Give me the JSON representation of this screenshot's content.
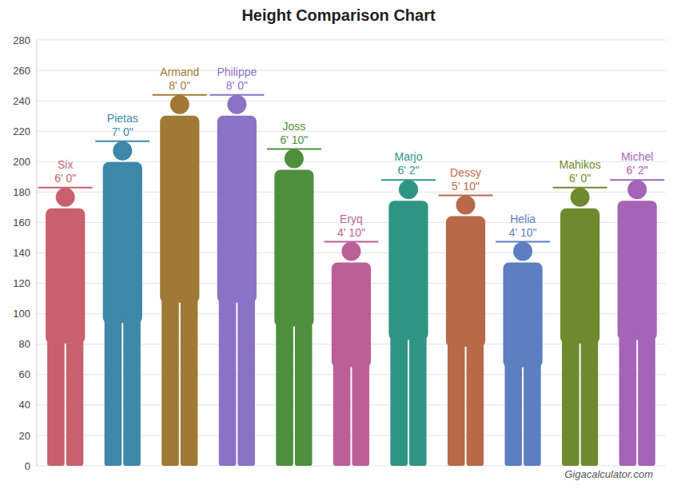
{
  "chart_data": {
    "type": "bar",
    "title": "Height Comparison Chart",
    "annotation": "Gigacalculator.com",
    "categories": [
      "Six",
      "Pietas",
      "Armand",
      "Philippe",
      "Joss",
      "Eryq",
      "Marjo",
      "Dessy",
      "Helia",
      "Mahikos",
      "Michel"
    ],
    "values": [
      182.88,
      213.36,
      243.84,
      243.84,
      208.28,
      147.32,
      187.96,
      177.8,
      147.32,
      182.88,
      187.96
    ],
    "value_labels": [
      "6' 0\"",
      "7' 0\"",
      "8' 0\"",
      "8' 0\"",
      "6' 10\"",
      "4' 10\"",
      "6' 2\"",
      "5' 10\"",
      "4' 10\"",
      "6' 0\"",
      "6' 2\""
    ],
    "colors": [
      "#c8606e",
      "#3d88a8",
      "#a07a34",
      "#8a72c4",
      "#4e8f3e",
      "#bd5f97",
      "#2e9584",
      "#b86a48",
      "#5b7fc0",
      "#6f8a2e",
      "#a564b8"
    ],
    "ylim": [
      0,
      280
    ],
    "yticks": [
      0,
      20,
      40,
      60,
      80,
      100,
      120,
      140,
      160,
      180,
      200,
      220,
      240,
      260,
      280
    ],
    "grid": true,
    "data_labels": true,
    "tick_labels": "y"
  }
}
